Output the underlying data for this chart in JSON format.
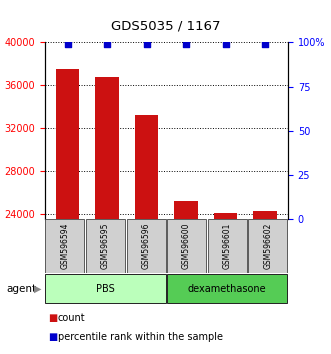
{
  "title": "GDS5035 / 1167",
  "samples": [
    "GSM596594",
    "GSM596595",
    "GSM596596",
    "GSM596600",
    "GSM596601",
    "GSM596602"
  ],
  "counts": [
    37500,
    36800,
    33200,
    25200,
    24100,
    24300
  ],
  "percentile_ranks": [
    99,
    99,
    99,
    99,
    99,
    99
  ],
  "bar_color": "#cc1111",
  "dot_color": "#0000cc",
  "ylim_left": [
    23500,
    40000
  ],
  "ylim_right": [
    0,
    100
  ],
  "yticks_left": [
    24000,
    28000,
    32000,
    36000,
    40000
  ],
  "yticks_right": [
    0,
    25,
    50,
    75,
    100
  ],
  "yticklabels_right": [
    "0",
    "25",
    "50",
    "75",
    "100%"
  ],
  "group_pbs_color": "#bbffbb",
  "group_dex_color": "#55cc55",
  "legend_count_label": "count",
  "legend_pct_label": "percentile rank within the sample"
}
